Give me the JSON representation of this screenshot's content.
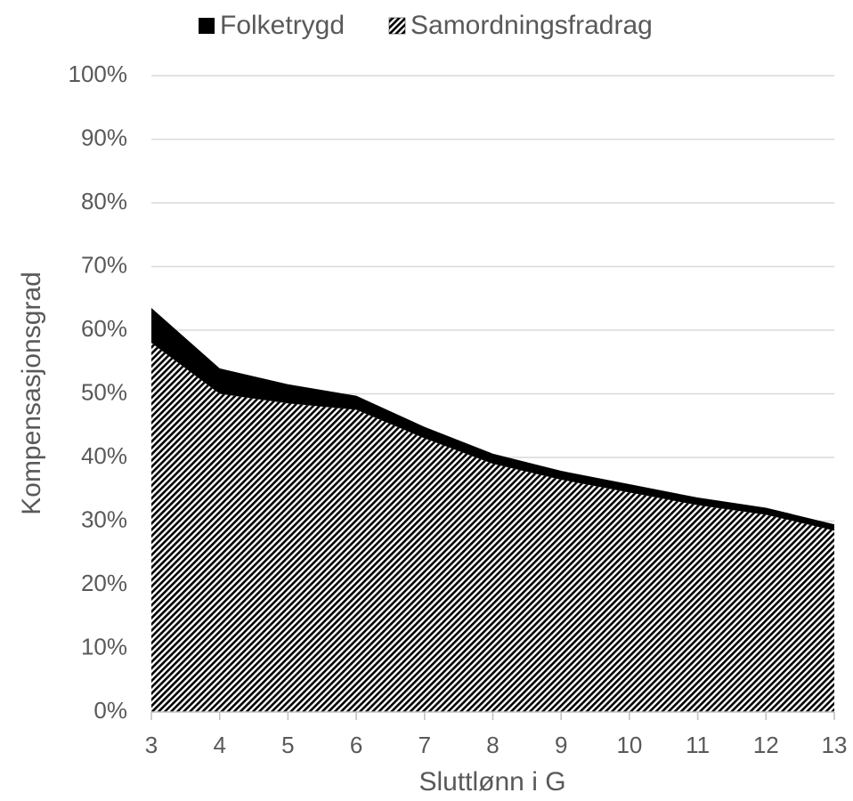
{
  "chart_data": {
    "type": "area",
    "stacked": true,
    "title": "",
    "xlabel": "Sluttlønn i G",
    "ylabel": "Kompensasjonsgrad",
    "x": [
      3,
      4,
      5,
      6,
      7,
      8,
      9,
      10,
      11,
      12,
      13
    ],
    "ylim": [
      0,
      1
    ],
    "y_ticks": [
      0,
      0.1,
      0.2,
      0.3,
      0.4,
      0.5,
      0.6,
      0.7,
      0.8,
      0.9,
      1.0
    ],
    "y_tick_labels": [
      "0%",
      "10%",
      "20%",
      "30%",
      "40%",
      "50%",
      "60%",
      "70%",
      "80%",
      "90%",
      "100%"
    ],
    "x_tick_labels": [
      "3",
      "4",
      "5",
      "6",
      "7",
      "8",
      "9",
      "10",
      "11",
      "12",
      "13"
    ],
    "grid": "horizontal",
    "legend_position": "top",
    "series": [
      {
        "name": "Samordningsfradrag",
        "fill": "hatched",
        "color": "#000000",
        "values": [
          0.58,
          0.5,
          0.485,
          0.475,
          0.43,
          0.39,
          0.365,
          0.345,
          0.325,
          0.31,
          0.285
        ]
      },
      {
        "name": "Folketrygd",
        "fill": "solid",
        "color": "#000000",
        "values": [
          0.055,
          0.04,
          0.03,
          0.022,
          0.018,
          0.016,
          0.014,
          0.013,
          0.012,
          0.011,
          0.01
        ]
      }
    ],
    "colors": {
      "grid": "#d9d9d9",
      "text": "#595959",
      "axis": "#bfbfbf"
    }
  }
}
